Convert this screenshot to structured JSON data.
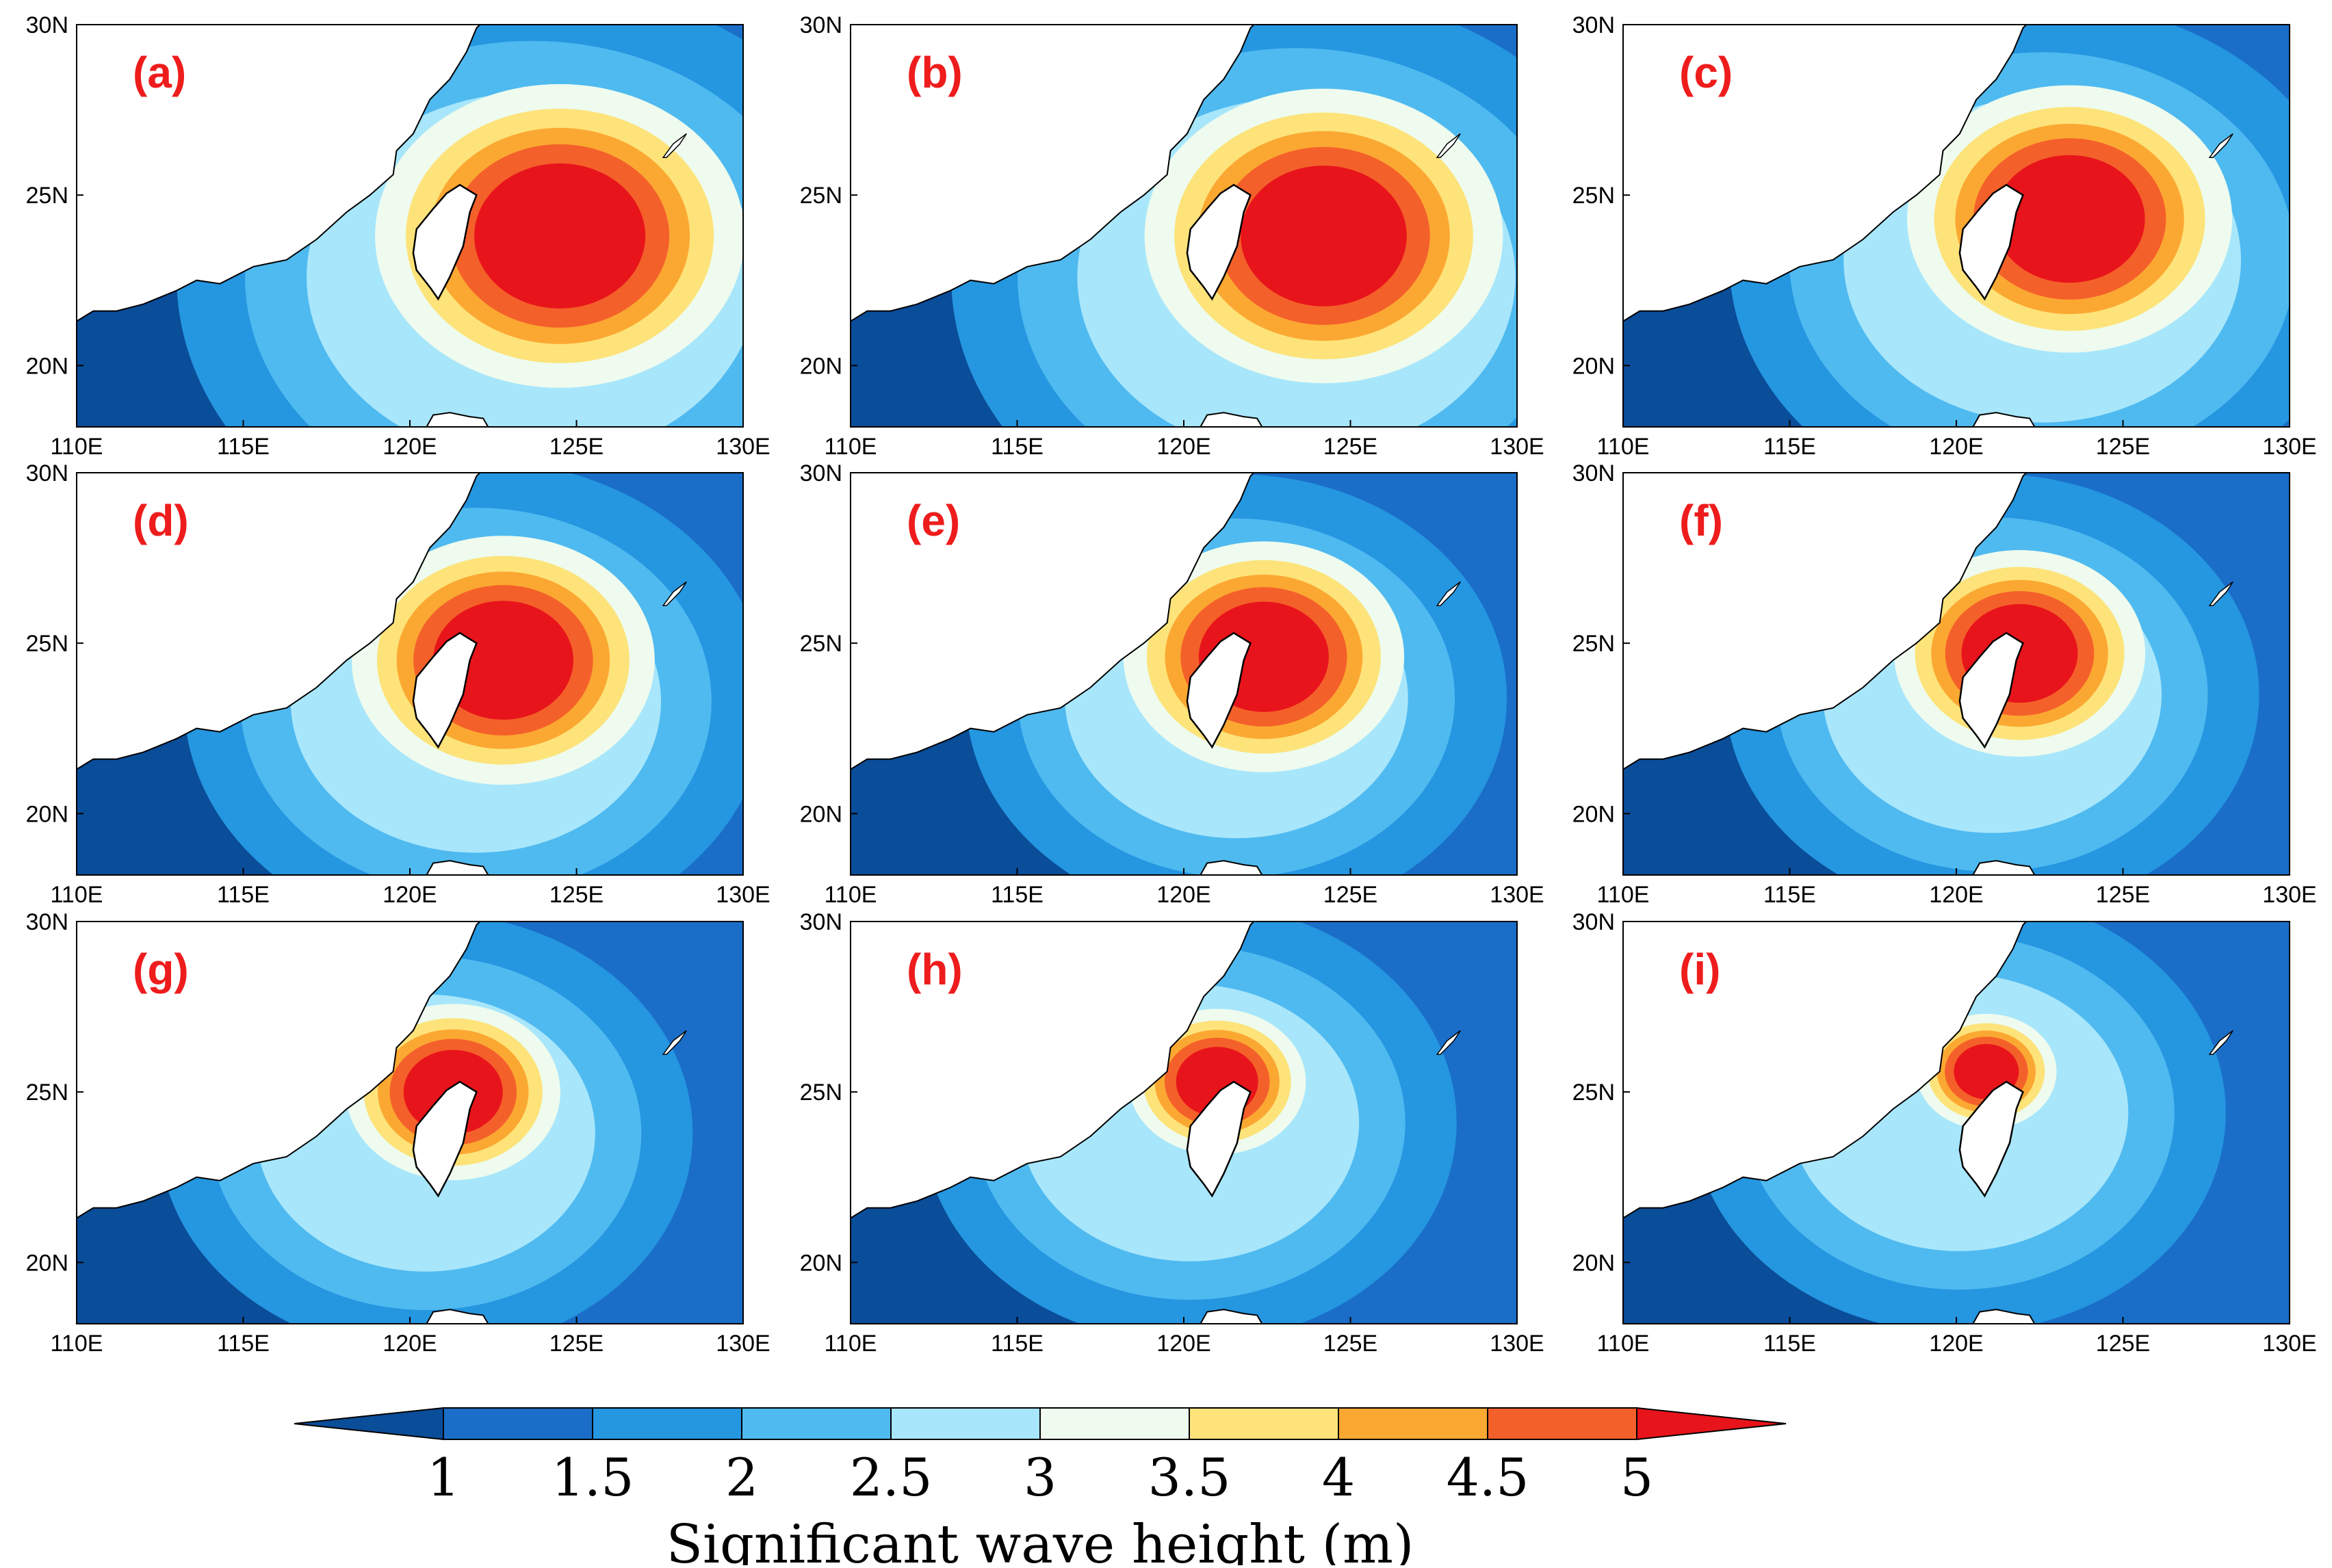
{
  "figure": {
    "colorbar": {
      "title": "Significant wave height (m)",
      "levels": [
        "1",
        "1.5",
        "2",
        "2.5",
        "3",
        "3.5",
        "4",
        "4.5",
        "5"
      ],
      "colors": [
        "#0a4d99",
        "#1a6ec8",
        "#2596e0",
        "#4fbaf0",
        "#a8e6fb",
        "#eefbee",
        "#fde37a",
        "#fba832",
        "#f4602a",
        "#e8141b"
      ]
    },
    "axes": {
      "x_ticks": [
        "110E",
        "115E",
        "120E",
        "125E",
        "130E"
      ],
      "y_ticks": [
        "30N",
        "25N",
        "20N"
      ],
      "lon_range": [
        110,
        130
      ],
      "lat_range": [
        18.2,
        30
      ]
    },
    "panels": [
      {
        "label": "(a)",
        "storm_lon": 124.5,
        "storm_lat": 23.8,
        "scale": 1.0
      },
      {
        "label": "(b)",
        "storm_lon": 124.2,
        "storm_lat": 23.8,
        "scale": 0.97
      },
      {
        "label": "(c)",
        "storm_lon": 123.4,
        "storm_lat": 24.3,
        "scale": 0.88
      },
      {
        "label": "(d)",
        "storm_lon": 122.8,
        "storm_lat": 24.5,
        "scale": 0.82
      },
      {
        "label": "(e)",
        "storm_lon": 122.4,
        "storm_lat": 24.6,
        "scale": 0.76
      },
      {
        "label": "(f)",
        "storm_lon": 121.9,
        "storm_lat": 24.7,
        "scale": 0.68
      },
      {
        "label": "(g)",
        "storm_lon": 121.3,
        "storm_lat": 25.0,
        "scale": 0.58
      },
      {
        "label": "(h)",
        "storm_lon": 121.0,
        "storm_lat": 25.3,
        "scale": 0.48
      },
      {
        "label": "(i)",
        "storm_lon": 120.9,
        "storm_lat": 25.6,
        "scale": 0.38
      }
    ]
  }
}
